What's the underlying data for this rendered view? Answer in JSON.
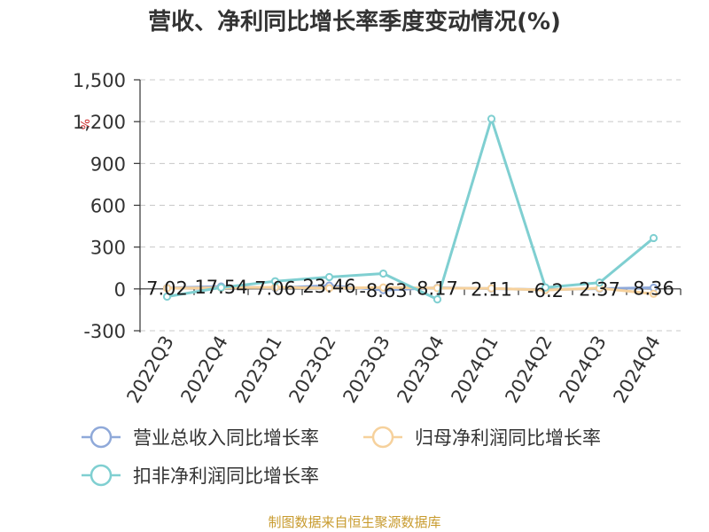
{
  "title": "营收、净利同比增长率季度变动情况(%)",
  "source": "制图数据来自恒生聚源数据库",
  "unit_mark": "%",
  "chart_data": {
    "type": "line",
    "title": "营收、净利同比增长率季度变动情况(%)",
    "categories": [
      "2022Q3",
      "2022Q4",
      "2023Q1",
      "2023Q2",
      "2023Q3",
      "2023Q4",
      "2024Q1",
      "2024Q2",
      "2024Q3",
      "2024Q4"
    ],
    "y_ticks": [
      "-300",
      "0",
      "300",
      "600",
      "900",
      "1,200",
      "1,500"
    ],
    "ylim": [
      -300,
      1500
    ],
    "grid": true,
    "legend_position": "bottom",
    "series": [
      {
        "name": "营业总收入同比增长率",
        "color": "#8fa9d9",
        "values": [
          7.02,
          17.54,
          7.06,
          23.46,
          -8.63,
          8.17,
          2.11,
          -6.2,
          2.37,
          8.36
        ],
        "labels": [
          "7.02",
          "17.54",
          "7.06",
          "23.46",
          "-8.63",
          "8.17",
          "2.11",
          "-6.2",
          "2.37",
          "8.36"
        ]
      },
      {
        "name": "归母净利润同比增长率",
        "color": "#f6d19c",
        "values": [
          5,
          8,
          12,
          5,
          10,
          6,
          4,
          -8,
          5,
          -35
        ],
        "labels": []
      },
      {
        "name": "扣非净利润同比增长率",
        "color": "#7fcfd1",
        "values": [
          -55,
          10,
          55,
          85,
          110,
          -75,
          1220,
          10,
          45,
          365
        ],
        "labels": []
      }
    ]
  }
}
